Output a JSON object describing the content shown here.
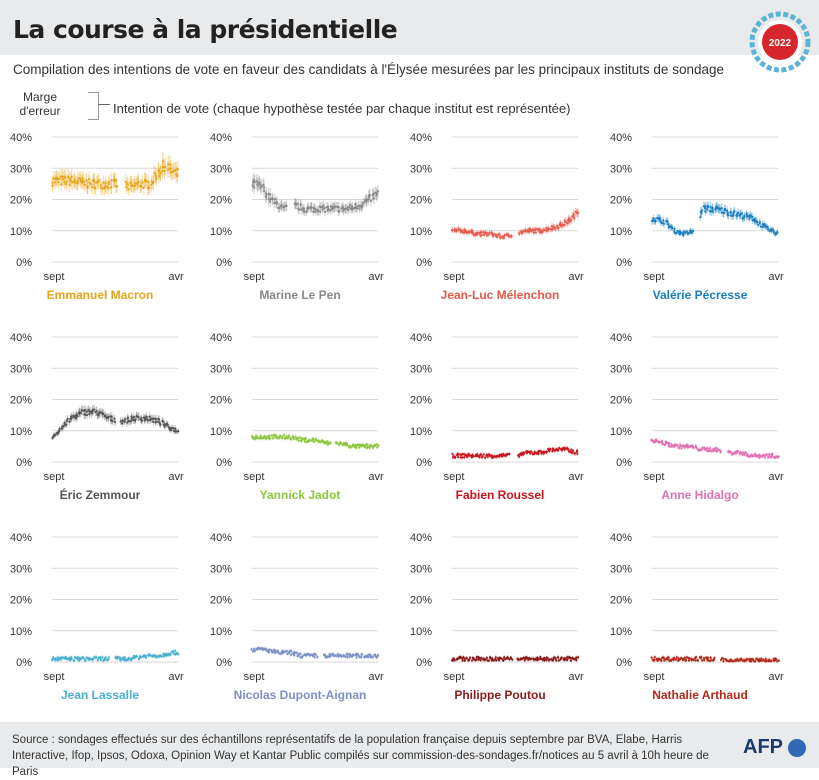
{
  "header": {
    "title": "La course à la présidentielle",
    "badge_year": "2022",
    "subtitle": "Compilation des intentions de vote en faveur des candidats à l'Élysée mesurées par les principaux instituts de sondage"
  },
  "legend_key": {
    "margin_label": "Marge d'erreur",
    "intention_label": "Intention de vote (chaque hypothèse testée par chaque institut est représentée)"
  },
  "footer": {
    "source": "Source : sondages effectués sur des échantillons représentatifs de la population française depuis septembre par BVA, Elabe, Harris Interactive, Ifop, Ipsos, Odoxa, Opinion Way et Kantar Public compilés sur commission-des-sondages.fr/notices au 5 avril à 10h heure de Paris",
    "brand": "AFP"
  },
  "colors": {
    "badge_ring": "#5bb4d8",
    "badge_center": "#d7262b",
    "grid": "#d9d9d9",
    "axis_text": "#333333"
  },
  "chart_data": [
    {
      "type": "scatter",
      "name": "Emmanuel Macron",
      "color": "#e8a317",
      "ylim": [
        0,
        40
      ],
      "yticks": [
        "0%",
        "10%",
        "20%",
        "30%",
        "40%"
      ],
      "xticks": [
        "sept",
        "avr"
      ],
      "trend": [
        [
          0,
          26
        ],
        [
          0.15,
          26
        ],
        [
          0.3,
          25
        ],
        [
          0.45,
          25
        ],
        [
          0.55,
          25
        ],
        [
          0.62,
          24
        ],
        [
          0.7,
          25
        ],
        [
          0.78,
          25
        ],
        [
          0.85,
          29
        ],
        [
          0.9,
          31
        ],
        [
          0.95,
          29
        ],
        [
          1,
          28
        ]
      ],
      "gap": [
        0.52,
        0.58
      ]
    },
    {
      "type": "scatter",
      "name": "Marine Le Pen",
      "color": "#888888",
      "ylim": [
        0,
        40
      ],
      "yticks": [
        "0%",
        "10%",
        "20%",
        "30%",
        "40%"
      ],
      "xticks": [
        "sept",
        "avr"
      ],
      "trend": [
        [
          0,
          25
        ],
        [
          0.08,
          24
        ],
        [
          0.15,
          20
        ],
        [
          0.25,
          17
        ],
        [
          0.35,
          18
        ],
        [
          0.42,
          17
        ],
        [
          0.55,
          17
        ],
        [
          0.65,
          17
        ],
        [
          0.75,
          17
        ],
        [
          0.85,
          18
        ],
        [
          0.93,
          20
        ],
        [
          1,
          22
        ]
      ],
      "gap": [
        0.28,
        0.33
      ]
    },
    {
      "type": "scatter",
      "name": "Jean-Luc Mélenchon",
      "color": "#e8584a",
      "ylim": [
        0,
        40
      ],
      "yticks": [
        "0%",
        "10%",
        "20%",
        "30%",
        "40%"
      ],
      "xticks": [
        "sept",
        "avr"
      ],
      "trend": [
        [
          0,
          10
        ],
        [
          0.1,
          10
        ],
        [
          0.2,
          9
        ],
        [
          0.3,
          9
        ],
        [
          0.4,
          8
        ],
        [
          0.5,
          9
        ],
        [
          0.6,
          10
        ],
        [
          0.7,
          10
        ],
        [
          0.8,
          11
        ],
        [
          0.88,
          12
        ],
        [
          0.95,
          14
        ],
        [
          1,
          16
        ]
      ],
      "gap": [
        0.48,
        0.53
      ]
    },
    {
      "type": "scatter",
      "name": "Valérie Pécresse",
      "color": "#1a7dc0",
      "ylim": [
        0,
        40
      ],
      "yticks": [
        "0%",
        "10%",
        "20%",
        "30%",
        "40%"
      ],
      "xticks": [
        "sept",
        "avr"
      ],
      "trend": [
        [
          0,
          14
        ],
        [
          0.1,
          13
        ],
        [
          0.18,
          10
        ],
        [
          0.25,
          9
        ],
        [
          0.35,
          10
        ],
        [
          0.4,
          17
        ],
        [
          0.5,
          17
        ],
        [
          0.6,
          16
        ],
        [
          0.7,
          15
        ],
        [
          0.8,
          14
        ],
        [
          0.9,
          11
        ],
        [
          1,
          9
        ]
      ],
      "gap": [
        0.33,
        0.38
      ]
    },
    {
      "type": "scatter",
      "name": "Éric Zemmour",
      "color": "#555555",
      "ylim": [
        0,
        40
      ],
      "yticks": [
        "0%",
        "10%",
        "20%",
        "30%",
        "40%"
      ],
      "xticks": [
        "sept",
        "avr"
      ],
      "trend": [
        [
          0,
          8
        ],
        [
          0.08,
          11
        ],
        [
          0.15,
          14
        ],
        [
          0.25,
          16
        ],
        [
          0.35,
          16
        ],
        [
          0.45,
          14
        ],
        [
          0.55,
          13
        ],
        [
          0.65,
          14
        ],
        [
          0.75,
          14
        ],
        [
          0.85,
          13
        ],
        [
          0.93,
          11
        ],
        [
          1,
          10
        ]
      ],
      "gap": [
        0.5,
        0.55
      ]
    },
    {
      "type": "scatter",
      "name": "Yannick Jadot",
      "color": "#8cc63e",
      "ylim": [
        0,
        40
      ],
      "yticks": [
        "0%",
        "10%",
        "20%",
        "30%",
        "40%"
      ],
      "xticks": [
        "sept",
        "avr"
      ],
      "trend": [
        [
          0,
          8
        ],
        [
          0.1,
          8
        ],
        [
          0.2,
          8
        ],
        [
          0.3,
          8
        ],
        [
          0.4,
          7
        ],
        [
          0.5,
          7
        ],
        [
          0.6,
          6
        ],
        [
          0.7,
          6
        ],
        [
          0.8,
          5
        ],
        [
          0.9,
          5
        ],
        [
          1,
          5
        ]
      ],
      "gap": [
        0.62,
        0.66
      ]
    },
    {
      "type": "scatter",
      "name": "Fabien Roussel",
      "color": "#c8141e",
      "ylim": [
        0,
        40
      ],
      "yticks": [
        "0%",
        "10%",
        "20%",
        "30%",
        "40%"
      ],
      "xticks": [
        "sept",
        "avr"
      ],
      "trend": [
        [
          0,
          2
        ],
        [
          0.1,
          2
        ],
        [
          0.2,
          2
        ],
        [
          0.3,
          2
        ],
        [
          0.4,
          2
        ],
        [
          0.5,
          2
        ],
        [
          0.6,
          3
        ],
        [
          0.7,
          3
        ],
        [
          0.8,
          4
        ],
        [
          0.9,
          4
        ],
        [
          1,
          3
        ]
      ],
      "gap": [
        0.45,
        0.52
      ]
    },
    {
      "type": "scatter",
      "name": "Anne Hidalgo",
      "color": "#e070b0",
      "ylim": [
        0,
        40
      ],
      "yticks": [
        "0%",
        "10%",
        "20%",
        "30%",
        "40%"
      ],
      "xticks": [
        "sept",
        "avr"
      ],
      "trend": [
        [
          0,
          7
        ],
        [
          0.1,
          6
        ],
        [
          0.2,
          5
        ],
        [
          0.3,
          5
        ],
        [
          0.4,
          4
        ],
        [
          0.5,
          4
        ],
        [
          0.6,
          3
        ],
        [
          0.7,
          3
        ],
        [
          0.8,
          2
        ],
        [
          0.9,
          2
        ],
        [
          1,
          2
        ]
      ],
      "gap": [
        0.55,
        0.6
      ]
    },
    {
      "type": "scatter",
      "name": "Jean Lassalle",
      "color": "#4ab0d0",
      "ylim": [
        0,
        40
      ],
      "yticks": [
        "0%",
        "10%",
        "20%",
        "30%",
        "40%"
      ],
      "xticks": [
        "sept",
        "avr"
      ],
      "trend": [
        [
          0,
          1
        ],
        [
          0.2,
          1
        ],
        [
          0.4,
          1
        ],
        [
          0.6,
          1
        ],
        [
          0.75,
          2
        ],
        [
          0.85,
          2
        ],
        [
          0.95,
          3
        ],
        [
          1,
          3
        ]
      ],
      "gap": [
        0.45,
        0.5
      ]
    },
    {
      "type": "scatter",
      "name": "Nicolas Dupont-Aignan",
      "color": "#7e8fc8",
      "ylim": [
        0,
        40
      ],
      "yticks": [
        "0%",
        "10%",
        "20%",
        "30%",
        "40%"
      ],
      "xticks": [
        "sept",
        "avr"
      ],
      "trend": [
        [
          0,
          4
        ],
        [
          0.1,
          4
        ],
        [
          0.2,
          3
        ],
        [
          0.3,
          3
        ],
        [
          0.4,
          2
        ],
        [
          0.5,
          2
        ],
        [
          0.6,
          2
        ],
        [
          0.7,
          2
        ],
        [
          0.8,
          2
        ],
        [
          0.9,
          2
        ],
        [
          1,
          2
        ]
      ],
      "gap": [
        0.52,
        0.57
      ]
    },
    {
      "type": "scatter",
      "name": "Philippe Poutou",
      "color": "#8b1a1a",
      "ylim": [
        0,
        40
      ],
      "yticks": [
        "0%",
        "10%",
        "20%",
        "30%",
        "40%"
      ],
      "xticks": [
        "sept",
        "avr"
      ],
      "trend": [
        [
          0,
          1
        ],
        [
          0.2,
          1
        ],
        [
          0.4,
          1
        ],
        [
          0.6,
          1
        ],
        [
          0.8,
          1
        ],
        [
          1,
          1
        ]
      ],
      "gap": [
        0.48,
        0.52
      ]
    },
    {
      "type": "scatter",
      "name": "Nathalie Arthaud",
      "color": "#b22a1a",
      "ylim": [
        0,
        40
      ],
      "yticks": [
        "0%",
        "10%",
        "20%",
        "30%",
        "40%"
      ],
      "xticks": [
        "sept",
        "avr"
      ],
      "trend": [
        [
          0,
          1
        ],
        [
          0.2,
          1
        ],
        [
          0.4,
          1
        ],
        [
          0.6,
          0.5
        ],
        [
          0.8,
          0.5
        ],
        [
          1,
          0.5
        ]
      ],
      "gap": [
        0.5,
        0.55
      ]
    }
  ]
}
